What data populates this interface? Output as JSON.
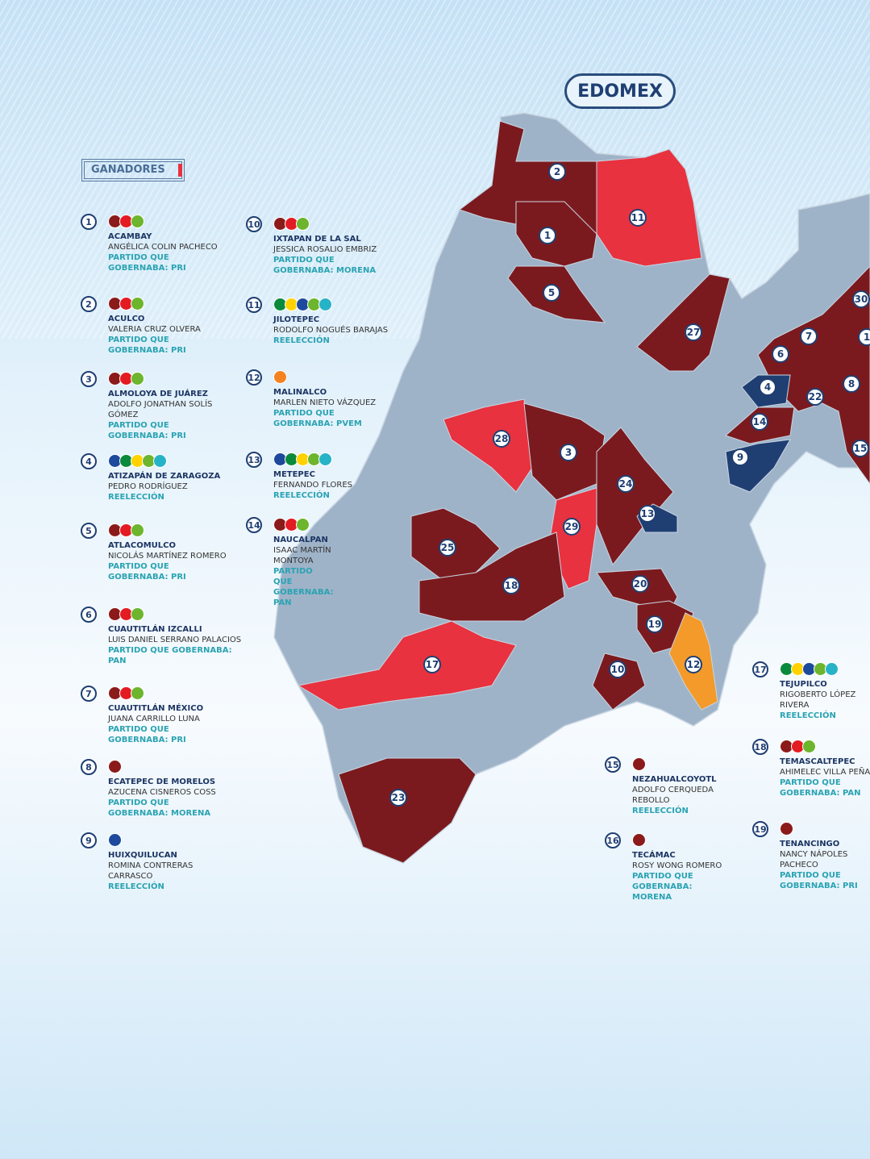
{
  "header": {
    "title": "EDOMEX",
    "section": "GANADORES"
  },
  "map_labels": [
    "2",
    "1",
    "11",
    "5",
    "27",
    "30",
    "7",
    "1",
    "6",
    "4",
    "22",
    "8",
    "14",
    "9",
    "15",
    "28",
    "3",
    "24",
    "13",
    "29",
    "25",
    "18",
    "20",
    "19",
    "17",
    "12",
    "10",
    "23"
  ],
  "entries": [
    {
      "number": "1",
      "municipality": "ACAMBAY",
      "winner": "ANGÉLICA COLIN PACHECO",
      "status": "PARTIDO QUE GOBERNABA: PRI"
    },
    {
      "number": "2",
      "municipality": "ACULCO",
      "winner": "VALERIA CRUZ OLVERA",
      "status": "PARTIDO QUE GOBERNABA: PRI"
    },
    {
      "number": "3",
      "municipality": "ALMOLOYA DE JUÁREZ",
      "winner": "ADOLFO JONATHAN SOLÍS GÓMEZ",
      "status": "PARTIDO QUE GOBERNABA: PRI"
    },
    {
      "number": "4",
      "municipality": "ATIZAPÁN DE ZARAGOZA",
      "winner": "PEDRO RODRÍGUEZ",
      "status": "REELECCIÓN"
    },
    {
      "number": "5",
      "municipality": "ATLACOMULCO",
      "winner": "NICOLÁS MARTÍNEZ ROMERO",
      "status": "PARTIDO QUE GOBERNABA: PRI"
    },
    {
      "number": "6",
      "municipality": "CUAUTITLÁN IZCALLI",
      "winner": "LUIS DANIEL SERRANO PALACIOS",
      "status": "PARTIDO QUE GOBERNABA: PAN"
    },
    {
      "number": "7",
      "municipality": "CUAUTITLÁN MÉXICO",
      "winner": "JUANA CARRILLO LUNA",
      "status": "PARTIDO QUE GOBERNABA: PRI"
    },
    {
      "number": "8",
      "municipality": "ECATEPEC DE MORELOS",
      "winner": "AZUCENA CISNEROS COSS",
      "status": "PARTIDO QUE GOBERNABA: MORENA"
    },
    {
      "number": "9",
      "municipality": "HUIXQUILUCAN",
      "winner": "ROMINA CONTRERAS CARRASCO",
      "status": "REELECCIÓN"
    },
    {
      "number": "10",
      "municipality": "IXTAPAN DE LA SAL",
      "winner": "JESSICA ROSALIO EMBRIZ",
      "status": "PARTIDO QUE GOBERNABA: MORENA"
    },
    {
      "number": "11",
      "municipality": "JILOTEPEC",
      "winner": "RODOLFO NOGUÉS BARAJAS",
      "status": "REELECCIÓN"
    },
    {
      "number": "12",
      "municipality": "MALINALCO",
      "winner": "MARLEN NIETO VÁZQUEZ",
      "status": "PARTIDO QUE GOBERNABA: PVEM"
    },
    {
      "number": "13",
      "municipality": "METEPEC",
      "winner": "FERNANDO FLORES",
      "status": "REELECCIÓN"
    },
    {
      "number": "14",
      "municipality": "NAUCALPAN",
      "winner": "ISAAC MARTÍN MONTOYA",
      "status": "PARTIDO QUE GOBERNABA: PAN"
    },
    {
      "number": "15",
      "municipality": "NEZAHUALCOYOTL",
      "winner": "ADOLFO CERQUEDA REBOLLO",
      "status": "REELECCIÓN"
    },
    {
      "number": "16",
      "municipality": "TECÁMAC",
      "winner": "ROSY WONG ROMERO",
      "status": "PARTIDO QUE GOBERNABA: MORENA"
    },
    {
      "number": "17",
      "municipality": "TEJUPILCO",
      "winner": "RIGOBERTO LÓPEZ RIVERA",
      "status": "REELECCIÓN"
    },
    {
      "number": "18",
      "municipality": "TEMASCALTEPEC",
      "winner": "AHIMELEC VILLA PEÑA",
      "status": "PARTIDO QUE GOBERNABA: PAN"
    },
    {
      "number": "19",
      "municipality": "TENANCINGO",
      "winner": "NANCY NÁPOLES PACHECO",
      "status": "PARTIDO QUE GOBERNABA: PRI"
    }
  ]
}
